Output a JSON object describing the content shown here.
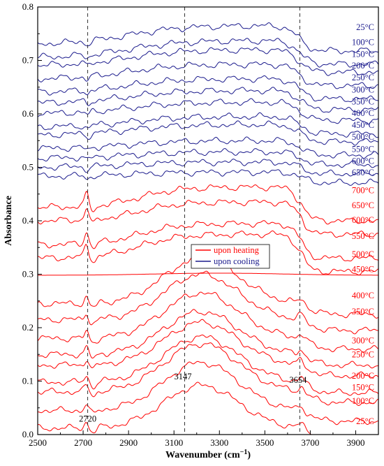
{
  "chart_data": {
    "type": "line",
    "title": "",
    "xlabel": "Wavenumber (cm",
    "xlabel_sup": "−1",
    "xlabel_close": ")",
    "ylabel": "Absorbance",
    "xlim": [
      2500,
      4000
    ],
    "ylim": [
      0,
      0.8
    ],
    "xticks": [
      2500,
      2700,
      2900,
      3100,
      3300,
      3500,
      3700,
      3900
    ],
    "xtick_labels": [
      "2500",
      "2700",
      "2900",
      "3100",
      "3300",
      "3500",
      "3700",
      "3900"
    ],
    "yticks": [
      0,
      0.1,
      0.2,
      0.3,
      0.4,
      0.5,
      0.6,
      0.7,
      0.8
    ],
    "ytick_labels": [
      "0.0",
      "0.1",
      "0.2",
      "0.3",
      "0.4",
      "0.5",
      "0.6",
      "0.7",
      "0.8"
    ],
    "grid": false,
    "reference_lines": [
      {
        "x": 2720,
        "label": "2720"
      },
      {
        "x": 3147,
        "label": "3147"
      },
      {
        "x": 3654,
        "label": "3654"
      }
    ],
    "legend": {
      "position": "center",
      "entries": [
        {
          "name": "upon heating",
          "color": "#ff0000"
        },
        {
          "name": "upon cooling",
          "color": "#1a1a8c"
        }
      ]
    },
    "heating": {
      "color": "#ff0000",
      "labels": [
        "25°C",
        "100°C",
        "150°C",
        "200°C",
        "250°C",
        "300°C",
        "350°C",
        "400°C",
        "450°C",
        "500°C",
        "550°C",
        "600°C",
        "650°C",
        "700°C"
      ],
      "baselines": [
        0.012,
        0.045,
        0.08,
        0.098,
        0.13,
        0.15,
        0.18,
        0.215,
        0.245,
        0.298,
        0.33,
        0.355,
        0.4,
        0.425
      ],
      "curve_types": [
        "broad",
        "broad",
        "broad",
        "broad",
        "broad",
        "broad",
        "broad",
        "broad",
        "broad",
        "flat",
        "plateau",
        "plateau",
        "plateau",
        "plateau"
      ],
      "amplitudes": [
        0.08,
        0.09,
        0.09,
        0.085,
        0.08,
        0.08,
        0.085,
        0.085,
        0.085,
        0.004,
        0.045,
        0.04,
        0.035,
        0.038
      ],
      "label_y": [
        0.025,
        0.063,
        0.088,
        0.11,
        0.15,
        0.176,
        0.23,
        0.26,
        0.309,
        0.337,
        0.371,
        0.401,
        0.429,
        0.457
      ]
    },
    "cooling": {
      "color": "#1a1a8c",
      "labels": [
        "650°C",
        "600°C",
        "550°C",
        "500°C",
        "450°C",
        "400°C",
        "350°C",
        "300°C",
        "250°C",
        "200°C",
        "150°C",
        "100°C",
        "25°C"
      ],
      "baselines": [
        0.483,
        0.5,
        0.517,
        0.535,
        0.56,
        0.575,
        0.6,
        0.62,
        0.64,
        0.665,
        0.69,
        0.705,
        0.73
      ],
      "amplitudes": [
        0.008,
        0.01,
        0.012,
        0.015,
        0.02,
        0.02,
        0.022,
        0.024,
        0.026,
        0.028,
        0.03,
        0.032,
        0.035
      ],
      "label_y": [
        0.49,
        0.512,
        0.534,
        0.557,
        0.579,
        0.601,
        0.623,
        0.645,
        0.668,
        0.69,
        0.712,
        0.734,
        0.762
      ]
    }
  }
}
